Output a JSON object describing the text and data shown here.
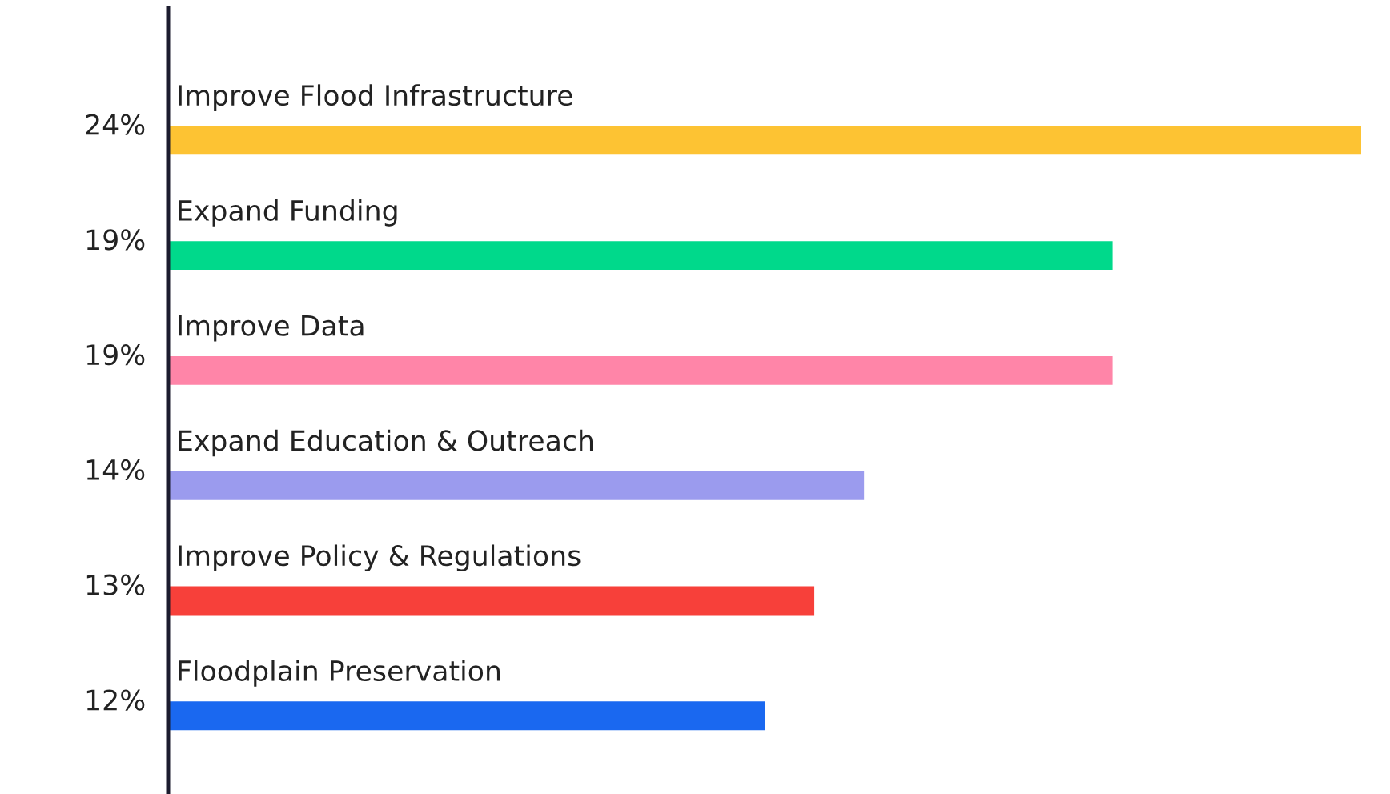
{
  "chart_data": {
    "type": "bar",
    "orientation": "horizontal",
    "categories": [
      "Improve Flood Infrastructure",
      "Expand Funding",
      "Improve Data",
      "Expand Education & Outreach",
      "Improve Policy & Regulations",
      "Floodplain Preservation"
    ],
    "values": [
      24,
      19,
      19,
      14,
      13,
      12
    ],
    "value_labels": [
      "24%",
      "19%",
      "19%",
      "14%",
      "13%",
      "12%"
    ],
    "colors": [
      "#fdc333",
      "#00d98b",
      "#ff85a8",
      "#9b9bee",
      "#f7403a",
      "#1a68f0"
    ],
    "xlim": [
      0,
      24
    ]
  }
}
